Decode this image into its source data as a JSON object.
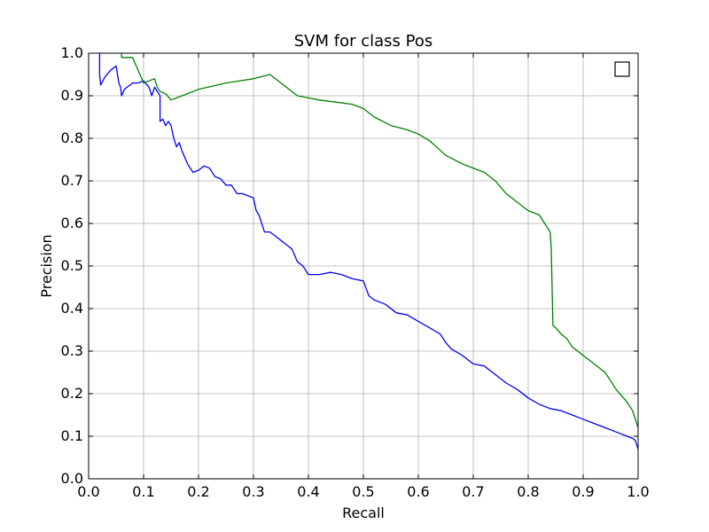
{
  "chart_data": {
    "type": "line",
    "title": "SVM for class Pos",
    "xlabel": "Recall",
    "ylabel": "Precision",
    "xlim": [
      0.0,
      1.0
    ],
    "ylim": [
      0.0,
      1.0
    ],
    "grid": true,
    "legend": "top-right",
    "x_ticks": [
      "0.0",
      "0.1",
      "0.2",
      "0.3",
      "0.4",
      "0.5",
      "0.6",
      "0.7",
      "0.8",
      "0.9",
      "1.0"
    ],
    "y_ticks": [
      "0.0",
      "0.1",
      "0.2",
      "0.3",
      "0.4",
      "0.5",
      "0.6",
      "0.7",
      "0.8",
      "0.9",
      "1.0"
    ],
    "series": [
      {
        "color": "#0000ff",
        "x": [
          0.02,
          0.02,
          0.022,
          0.03,
          0.04,
          0.05,
          0.055,
          0.058,
          0.06,
          0.065,
          0.07,
          0.08,
          0.09,
          0.1,
          0.11,
          0.115,
          0.12,
          0.13,
          0.13,
          0.135,
          0.14,
          0.145,
          0.15,
          0.155,
          0.16,
          0.165,
          0.17,
          0.18,
          0.185,
          0.19,
          0.2,
          0.21,
          0.22,
          0.23,
          0.24,
          0.25,
          0.26,
          0.27,
          0.28,
          0.3,
          0.305,
          0.31,
          0.32,
          0.33,
          0.34,
          0.35,
          0.36,
          0.37,
          0.38,
          0.39,
          0.4,
          0.42,
          0.44,
          0.46,
          0.48,
          0.5,
          0.51,
          0.52,
          0.54,
          0.56,
          0.58,
          0.6,
          0.62,
          0.64,
          0.65,
          0.66,
          0.68,
          0.7,
          0.72,
          0.74,
          0.76,
          0.78,
          0.8,
          0.82,
          0.84,
          0.86,
          0.88,
          0.9,
          0.92,
          0.94,
          0.96,
          0.98,
          0.99,
          0.995,
          1.0
        ],
        "y": [
          1.0,
          0.95,
          0.925,
          0.945,
          0.96,
          0.97,
          0.93,
          0.92,
          0.9,
          0.915,
          0.92,
          0.93,
          0.93,
          0.935,
          0.92,
          0.9,
          0.92,
          0.9,
          0.84,
          0.845,
          0.83,
          0.84,
          0.83,
          0.8,
          0.78,
          0.79,
          0.77,
          0.74,
          0.73,
          0.72,
          0.725,
          0.735,
          0.73,
          0.71,
          0.705,
          0.69,
          0.69,
          0.67,
          0.67,
          0.66,
          0.63,
          0.62,
          0.58,
          0.58,
          0.57,
          0.56,
          0.55,
          0.54,
          0.51,
          0.5,
          0.48,
          0.48,
          0.485,
          0.48,
          0.47,
          0.465,
          0.43,
          0.42,
          0.41,
          0.39,
          0.385,
          0.37,
          0.355,
          0.34,
          0.32,
          0.305,
          0.29,
          0.27,
          0.265,
          0.245,
          0.225,
          0.21,
          0.19,
          0.175,
          0.165,
          0.16,
          0.15,
          0.14,
          0.13,
          0.12,
          0.11,
          0.1,
          0.095,
          0.09,
          0.07
        ]
      },
      {
        "color": "#008000",
        "x": [
          0.06,
          0.06,
          0.08,
          0.085,
          0.1,
          0.11,
          0.12,
          0.125,
          0.13,
          0.14,
          0.15,
          0.17,
          0.2,
          0.25,
          0.3,
          0.33,
          0.36,
          0.38,
          0.4,
          0.42,
          0.45,
          0.48,
          0.5,
          0.52,
          0.55,
          0.58,
          0.6,
          0.62,
          0.65,
          0.68,
          0.7,
          0.72,
          0.74,
          0.76,
          0.78,
          0.8,
          0.82,
          0.83,
          0.835,
          0.84,
          0.842,
          0.845,
          0.85,
          0.86,
          0.87,
          0.88,
          0.89,
          0.9,
          0.92,
          0.94,
          0.96,
          0.98,
          0.99,
          1.0
        ],
        "y": [
          1.0,
          0.99,
          0.99,
          0.975,
          0.93,
          0.935,
          0.94,
          0.92,
          0.91,
          0.905,
          0.89,
          0.9,
          0.915,
          0.93,
          0.94,
          0.95,
          0.92,
          0.9,
          0.895,
          0.89,
          0.885,
          0.88,
          0.87,
          0.85,
          0.83,
          0.82,
          0.81,
          0.795,
          0.76,
          0.74,
          0.73,
          0.72,
          0.7,
          0.67,
          0.65,
          0.63,
          0.62,
          0.6,
          0.59,
          0.58,
          0.54,
          0.36,
          0.355,
          0.34,
          0.33,
          0.31,
          0.3,
          0.29,
          0.27,
          0.25,
          0.21,
          0.18,
          0.16,
          0.12
        ]
      }
    ]
  }
}
